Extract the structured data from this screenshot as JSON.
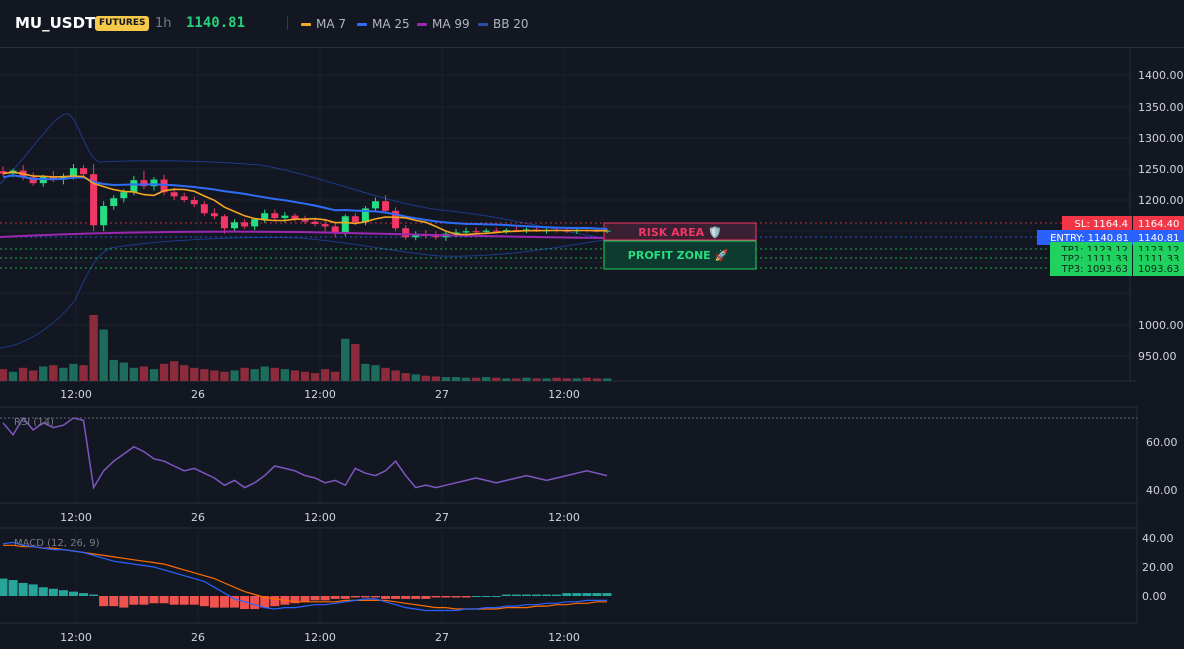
{
  "header": {
    "symbol": "MU_USDT",
    "badge": "FUTURES",
    "timeframe": "1h",
    "price": "1140.81",
    "indicators": [
      {
        "label": "MA 7",
        "color": "#f5a623"
      },
      {
        "label": "MA 25",
        "color": "#2f6df6"
      },
      {
        "label": "MA 99",
        "color": "#9c27b0"
      },
      {
        "label": "BB 20",
        "color": "#1e3a8a"
      }
    ]
  },
  "price_axis": {
    "ticks": [
      "1400.00",
      "1350.00",
      "1300.00",
      "1250.00",
      "1200.00",
      "1000.00",
      "950.00"
    ]
  },
  "time_axis": {
    "ticks": [
      "12:00",
      "26",
      "12:00",
      "27",
      "12:00"
    ]
  },
  "rsi": {
    "label": "RSI (14)",
    "ticks": [
      "60.00",
      "40.00"
    ]
  },
  "macd": {
    "label": "MACD (12, 26, 9)",
    "ticks": [
      "40.00",
      "20.00",
      "0.00"
    ]
  },
  "levels": [
    {
      "label": "SL: 1164.4",
      "value": "1164.40",
      "color": "#f23645"
    },
    {
      "label": "ENTRY: 1140.81",
      "value": "1140.81",
      "color": "#2962ff"
    },
    {
      "label": "TP1: 1123.12",
      "value": "1123.12",
      "color": "#1fd15f"
    },
    {
      "label": "TP2: 1111.33",
      "value": "1111.33",
      "color": "#1fd15f"
    },
    {
      "label": "TP3: 1093.63",
      "value": "1093.63",
      "color": "#1fd15f"
    }
  ],
  "zones": {
    "risk": "RISK AREA 🛡️",
    "profit": "PROFIT ZONE 🚀"
  },
  "colors": {
    "up": "#26de81",
    "down": "#f23665",
    "bg": "#131722"
  },
  "chart_data": {
    "type": "candlestick",
    "y_axis_labels": [
      1400,
      1350,
      1300,
      1250,
      1200,
      1000,
      950
    ],
    "candles": [
      [
        1240,
        1248,
        1232,
        1236
      ],
      [
        1236,
        1244,
        1230,
        1241
      ],
      [
        1241,
        1250,
        1225,
        1230
      ],
      [
        1230,
        1238,
        1216,
        1220
      ],
      [
        1220,
        1234,
        1214,
        1230
      ],
      [
        1230,
        1240,
        1222,
        1226
      ],
      [
        1226,
        1236,
        1218,
        1232
      ],
      [
        1232,
        1252,
        1226,
        1245
      ],
      [
        1245,
        1250,
        1232,
        1235
      ],
      [
        1235,
        1252,
        1140,
        1150
      ],
      [
        1150,
        1190,
        1140,
        1182
      ],
      [
        1182,
        1200,
        1176,
        1195
      ],
      [
        1195,
        1210,
        1188,
        1205
      ],
      [
        1205,
        1232,
        1200,
        1225
      ],
      [
        1225,
        1240,
        1210,
        1215
      ],
      [
        1215,
        1230,
        1208,
        1226
      ],
      [
        1226,
        1234,
        1200,
        1205
      ],
      [
        1205,
        1212,
        1192,
        1198
      ],
      [
        1198,
        1204,
        1188,
        1192
      ],
      [
        1192,
        1198,
        1180,
        1185
      ],
      [
        1185,
        1190,
        1166,
        1170
      ],
      [
        1170,
        1178,
        1160,
        1165
      ],
      [
        1165,
        1168,
        1136,
        1145
      ],
      [
        1145,
        1160,
        1140,
        1155
      ],
      [
        1155,
        1160,
        1144,
        1148
      ],
      [
        1148,
        1162,
        1142,
        1160
      ],
      [
        1160,
        1176,
        1154,
        1170
      ],
      [
        1170,
        1176,
        1156,
        1162
      ],
      [
        1162,
        1172,
        1155,
        1166
      ],
      [
        1166,
        1170,
        1156,
        1160
      ],
      [
        1160,
        1166,
        1152,
        1156
      ],
      [
        1156,
        1162,
        1148,
        1152
      ],
      [
        1152,
        1160,
        1140,
        1148
      ],
      [
        1148,
        1156,
        1130,
        1136
      ],
      [
        1136,
        1168,
        1132,
        1165
      ],
      [
        1165,
        1170,
        1150,
        1155
      ],
      [
        1155,
        1182,
        1150,
        1178
      ],
      [
        1178,
        1196,
        1172,
        1190
      ],
      [
        1190,
        1200,
        1170,
        1174
      ],
      [
        1174,
        1180,
        1140,
        1145
      ],
      [
        1145,
        1150,
        1126,
        1130
      ],
      [
        1130,
        1140,
        1125,
        1135
      ],
      [
        1135,
        1142,
        1128,
        1132
      ],
      [
        1132,
        1140,
        1126,
        1130
      ],
      [
        1130,
        1140,
        1124,
        1136
      ],
      [
        1136,
        1144,
        1130,
        1138
      ],
      [
        1138,
        1146,
        1134,
        1140
      ],
      [
        1140,
        1146,
        1136,
        1139
      ],
      [
        1139,
        1145,
        1135,
        1141
      ],
      [
        1141,
        1146,
        1137,
        1140
      ],
      [
        1140,
        1145,
        1136,
        1142
      ],
      [
        1142,
        1147,
        1138,
        1141
      ],
      [
        1141,
        1146,
        1137,
        1143
      ],
      [
        1143,
        1147,
        1139,
        1140
      ],
      [
        1140,
        1145,
        1136,
        1142
      ],
      [
        1142,
        1146,
        1138,
        1141
      ],
      [
        1141,
        1145,
        1137,
        1140
      ],
      [
        1140,
        1144,
        1136,
        1142
      ],
      [
        1142,
        1146,
        1138,
        1141
      ],
      [
        1141,
        1145,
        1138,
        1140
      ],
      [
        1140,
        1144,
        1137,
        1141
      ]
    ],
    "volume": [
      18,
      14,
      20,
      16,
      22,
      24,
      20,
      26,
      24,
      100,
      78,
      32,
      28,
      20,
      22,
      18,
      26,
      30,
      24,
      20,
      18,
      16,
      14,
      16,
      20,
      18,
      22,
      20,
      18,
      16,
      14,
      12,
      18,
      14,
      64,
      56,
      26,
      24,
      20,
      16,
      12,
      10,
      8,
      7,
      6,
      6,
      5,
      5,
      6,
      5,
      4,
      4,
      5,
      4,
      4,
      5,
      4,
      4,
      5,
      4,
      4
    ],
    "rsi": [
      68,
      63,
      70,
      65,
      68,
      66,
      67,
      70,
      69,
      41,
      48,
      52,
      55,
      58,
      56,
      53,
      52,
      50,
      48,
      49,
      47,
      45,
      42,
      44,
      41,
      43,
      46,
      50,
      49,
      48,
      46,
      45,
      43,
      44,
      42,
      49,
      47,
      46,
      48,
      52,
      46,
      41,
      42,
      41,
      42,
      43,
      44,
      45,
      44,
      43,
      44,
      45,
      46,
      45,
      44,
      45,
      46,
      47,
      48,
      47,
      46
    ],
    "macd_line": [
      36,
      37,
      35,
      34,
      33,
      32,
      32,
      31,
      30,
      28,
      26,
      24,
      23,
      22,
      21,
      20,
      18,
      16,
      14,
      12,
      10,
      6,
      2,
      -2,
      -4,
      -6,
      -8,
      -9,
      -8,
      -8,
      -7,
      -6,
      -6,
      -5,
      -4,
      -3,
      -2,
      -2,
      -4,
      -6,
      -8,
      -9,
      -10,
      -10,
      -10,
      -10,
      -9,
      -9,
      -8,
      -8,
      -7,
      -7,
      -6,
      -6,
      -5,
      -5,
      -4,
      -4,
      -3,
      -3,
      -3
    ],
    "macd_signal": [
      35,
      35,
      34,
      34,
      33,
      33,
      32,
      31,
      30,
      29,
      28,
      27,
      26,
      25,
      24,
      23,
      22,
      20,
      18,
      16,
      14,
      12,
      9,
      6,
      3,
      1,
      -1,
      -2,
      -3,
      -4,
      -4,
      -4,
      -4,
      -4,
      -3,
      -3,
      -3,
      -3,
      -3,
      -4,
      -5,
      -6,
      -7,
      -8,
      -8,
      -9,
      -9,
      -9,
      -9,
      -9,
      -8,
      -8,
      -8,
      -7,
      -7,
      -6,
      -6,
      -5,
      -5,
      -4,
      -4
    ],
    "macd_hist": [
      12,
      11,
      9,
      8,
      6,
      5,
      4,
      3,
      2,
      1,
      -7,
      -7,
      -8,
      -6,
      -6,
      -5,
      -5,
      -6,
      -6,
      -6,
      -7,
      -8,
      -8,
      -8,
      -9,
      -9,
      -8,
      -7,
      -6,
      -5,
      -4,
      -3,
      -3,
      -2,
      -2,
      -1,
      -1,
      -1,
      -2,
      -2,
      -2,
      -2,
      -2,
      -1,
      -1,
      -1,
      -1,
      0,
      0,
      0,
      1,
      1,
      1,
      1,
      1,
      1,
      2,
      2,
      2,
      2,
      2
    ]
  }
}
